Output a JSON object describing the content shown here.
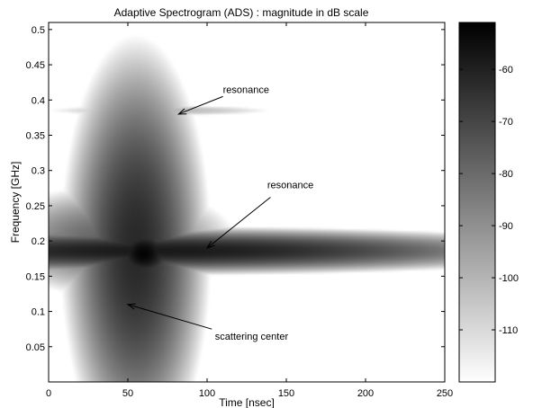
{
  "chart_data": {
    "type": "heatmap",
    "title": "Adaptive Spectrogram (ADS) : magnitude in dB scale",
    "xlabel": "Time [nsec]",
    "ylabel": "Frequency [GHz]",
    "xlim": [
      0,
      250
    ],
    "ylim": [
      0,
      0.51
    ],
    "xticks": [
      0,
      50,
      100,
      150,
      200,
      250
    ],
    "yticks": [
      0.05,
      0.1,
      0.15,
      0.2,
      0.25,
      0.3,
      0.35,
      0.4,
      0.45,
      0.5
    ],
    "colorbar": {
      "colormap": "gray-reversed",
      "range": [
        -120,
        -51
      ],
      "ticks": [
        -60,
        -70,
        -80,
        -90,
        -100,
        -110
      ]
    },
    "blobs": [
      {
        "t": 60,
        "f": 0.385,
        "st": 12,
        "sf": 0.012,
        "db": -92,
        "kind": "gauss"
      },
      {
        "t": 70,
        "f": 0.385,
        "st": 38,
        "sf": 0.004,
        "db": -100,
        "kind": "gauss"
      },
      {
        "t": 70,
        "f": 0.186,
        "st": 80,
        "sf": 0.01,
        "db": -58,
        "kind": "ridge"
      },
      {
        "t": 55,
        "f": 0.186,
        "st": 14,
        "sf": 0.09,
        "db": -62,
        "kind": "ridge"
      },
      {
        "t": 55,
        "f": 0.25,
        "st": 12,
        "sf": 0.05,
        "db": -75,
        "kind": "gauss"
      },
      {
        "t": 55,
        "f": 0.13,
        "st": 12,
        "sf": 0.04,
        "db": -80,
        "kind": "gauss"
      },
      {
        "t": 40,
        "f": 0.2,
        "st": 30,
        "sf": 0.03,
        "db": -78,
        "kind": "gauss"
      },
      {
        "t": 60,
        "f": 0.182,
        "st": 8,
        "sf": 0.015,
        "db": -52,
        "kind": "gauss"
      }
    ],
    "annotations": [
      {
        "text": "resonance",
        "text_t": 110,
        "text_f": 0.41,
        "arrow_from_t": 110,
        "arrow_from_f": 0.405,
        "arrow_to_t": 82,
        "arrow_to_f": 0.38
      },
      {
        "text": "resonance",
        "text_t": 138,
        "text_f": 0.275,
        "arrow_from_t": 140,
        "arrow_from_f": 0.262,
        "arrow_to_t": 100,
        "arrow_to_f": 0.19
      },
      {
        "text": "scattering center",
        "text_t": 105,
        "text_f": 0.06,
        "arrow_from_t": 103,
        "arrow_from_f": 0.075,
        "arrow_to_t": 50,
        "arrow_to_f": 0.11
      }
    ]
  }
}
